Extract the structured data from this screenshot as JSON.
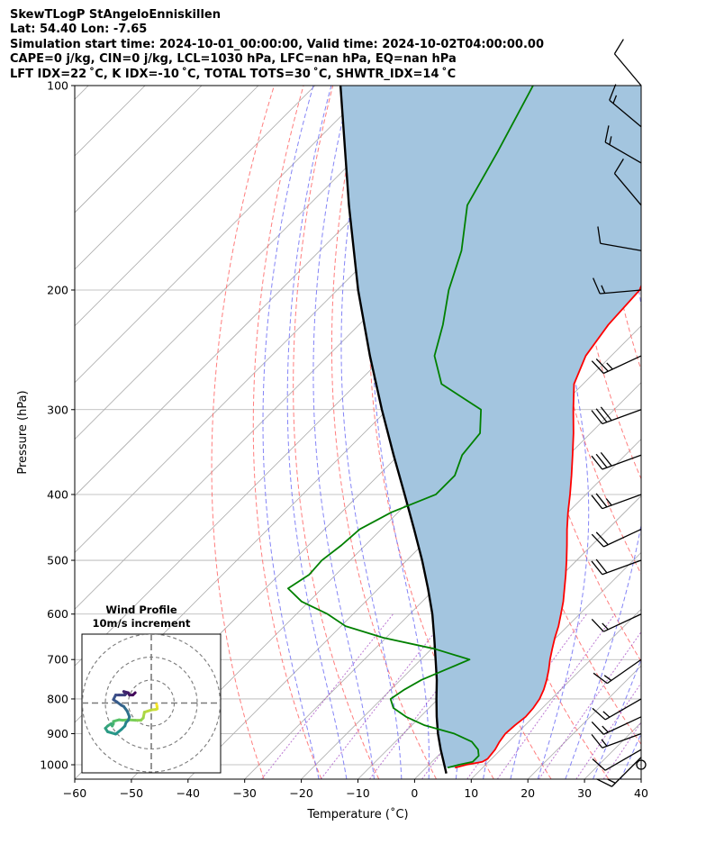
{
  "header": {
    "line1": "SkewTLogP StAngeloEnniskillen",
    "line2": "Lat: 54.40   Lon: -7.65",
    "line3": "Simulation start time: 2024-10-01_00:00:00, Valid time: 2024-10-02T04:00:00.00",
    "line4": "CAPE=0 j/kg, CIN=0 j/kg, LCL=1030 hPa, LFC=nan hPa, EQ=nan hPa",
    "line5": "LFT IDX=22 ˚C, K IDX=-10 ˚C, TOTAL TOTS=30 ˚C, SHWTR_IDX=14 ˚C"
  },
  "chart_data": {
    "type": "line",
    "xlabel": "Temperature (˚C)",
    "ylabel": "Pressure (hPa)",
    "xlim": [
      -60,
      40
    ],
    "ylim": [
      1050,
      100
    ],
    "y_scale": "log",
    "x_ticks": [
      "−60",
      "−50",
      "−40",
      "−30",
      "−20",
      "−10",
      "0",
      "10",
      "20",
      "30",
      "40"
    ],
    "y_ticks": [
      "100",
      "200",
      "300",
      "400",
      "500",
      "600",
      "700",
      "800",
      "900",
      "1000"
    ],
    "skew_degrees": 45,
    "grid": true,
    "colors": {
      "temperature": "#ff0000",
      "dewpoint": "#008000",
      "parcel": "#000000",
      "shading": "#a3c5df",
      "dry_adiabat": "#ff6666",
      "moist_adiabat": "#6f6ff5",
      "mixing_ratio": "#a040c0",
      "isotherm": "#aaaaaa"
    },
    "temperature": {
      "pressure": [
        1010,
        1000,
        990,
        980,
        950,
        925,
        900,
        875,
        850,
        825,
        800,
        775,
        750,
        725,
        700,
        675,
        650,
        625,
        600,
        575,
        550,
        525,
        500,
        475,
        450,
        425,
        400,
        375,
        350,
        325,
        300,
        275,
        250,
        225,
        200,
        175,
        150,
        125,
        100
      ],
      "values": [
        5.1,
        6.6,
        8.9,
        9.3,
        9.0,
        8.4,
        8.0,
        8.2,
        8.6,
        8.4,
        7.9,
        7.0,
        5.8,
        4.4,
        2.8,
        1.3,
        -0.2,
        -1.6,
        -3.3,
        -5.1,
        -7.2,
        -9.4,
        -11.8,
        -14.4,
        -17.2,
        -20.0,
        -22.8,
        -25.9,
        -29.3,
        -33.0,
        -37.2,
        -41.6,
        -44.5,
        -46.0,
        -46.6,
        -50.8,
        -54.6,
        -58.6,
        -61.8
      ]
    },
    "dewpoint": {
      "pressure": [
        1010,
        1000,
        990,
        970,
        950,
        925,
        900,
        875,
        850,
        825,
        800,
        775,
        750,
        725,
        700,
        675,
        650,
        625,
        600,
        575,
        550,
        525,
        500,
        475,
        450,
        425,
        400,
        375,
        350,
        325,
        300,
        275,
        250,
        225,
        200,
        175,
        150,
        125,
        100
      ],
      "values": [
        3.8,
        5.3,
        7.2,
        7.2,
        6.0,
        3.5,
        -1.0,
        -7.7,
        -12.5,
        -16.3,
        -18.4,
        -17.6,
        -16.3,
        -13.9,
        -11.4,
        -19.5,
        -30.5,
        -39.2,
        -44.5,
        -51.3,
        -56.0,
        -54.7,
        -55.0,
        -54.2,
        -53.8,
        -51.2,
        -46.5,
        -46.5,
        -48.8,
        -49.5,
        -53.5,
        -65.0,
        -71.2,
        -75.2,
        -80.3,
        -85.0,
        -92.0,
        -96.1,
        -101.5
      ]
    },
    "parcel": {
      "pressure": [
        1030,
        1000,
        950,
        900,
        850,
        800,
        750,
        700,
        650,
        600,
        550,
        500,
        450,
        400,
        350,
        300,
        250,
        200,
        150,
        100
      ],
      "values": [
        4.6,
        2.7,
        -0.6,
        -3.9,
        -7.1,
        -10.3,
        -13.6,
        -17.4,
        -21.5,
        -26.0,
        -31.3,
        -37.3,
        -44.2,
        -52.0,
        -60.9,
        -71.0,
        -82.6,
        -96.3,
        -112.9,
        -135.5
      ]
    },
    "wind_barbs": [
      {
        "pressure": 1000,
        "calm": true
      },
      {
        "pressure": 975,
        "speed_kt": 15,
        "direction": 225
      },
      {
        "pressure": 950,
        "speed_kt": 10,
        "direction": 240
      },
      {
        "pressure": 900,
        "speed_kt": 15,
        "direction": 250
      },
      {
        "pressure": 850,
        "speed_kt": 15,
        "direction": 245
      },
      {
        "pressure": 800,
        "speed_kt": 15,
        "direction": 240
      },
      {
        "pressure": 700,
        "speed_kt": 15,
        "direction": 235
      },
      {
        "pressure": 600,
        "speed_kt": 15,
        "direction": 245
      },
      {
        "pressure": 500,
        "speed_kt": 20,
        "direction": 250
      },
      {
        "pressure": 450,
        "speed_kt": 20,
        "direction": 245
      },
      {
        "pressure": 400,
        "speed_kt": 25,
        "direction": 250
      },
      {
        "pressure": 350,
        "speed_kt": 30,
        "direction": 250
      },
      {
        "pressure": 300,
        "speed_kt": 30,
        "direction": 250
      },
      {
        "pressure": 250,
        "speed_kt": 25,
        "direction": 245
      },
      {
        "pressure": 200,
        "speed_kt": 15,
        "direction": 265
      },
      {
        "pressure": 175,
        "speed_kt": 10,
        "direction": 280
      },
      {
        "pressure": 150,
        "speed_kt": 10,
        "direction": 320
      },
      {
        "pressure": 130,
        "speed_kt": 15,
        "direction": 300
      },
      {
        "pressure": 115,
        "speed_kt": 15,
        "direction": 310
      },
      {
        "pressure": 100,
        "speed_kt": 10,
        "direction": 320
      }
    ],
    "hodograph": {
      "title": "Wind Profile",
      "subtitle": "10m/s increment",
      "ring_increment_ms": 10,
      "rings": 3,
      "u": [
        2.3,
        2.5,
        2.6,
        2.0,
        0.0,
        -3.0,
        -3.5,
        -4.5,
        -7.0,
        -10.0,
        -12.5,
        -14.0,
        -16.5,
        -16.5,
        -17.0,
        -17.5,
        -19.0,
        -20.0,
        -19.0,
        -15.5,
        -13.0,
        -11.5,
        -11.0,
        -10.0,
        -9.5,
        -10.5,
        -12.0,
        -13.0,
        -15.0,
        -16.5,
        -15.5,
        -14.0,
        -11.5,
        -11.0,
        -11.5,
        -12.0,
        -10.0,
        -9.5,
        -8.0,
        -7.0
      ],
      "v": [
        -0.5,
        -1.5,
        -2.5,
        -2.8,
        -3.0,
        -4.0,
        -6.5,
        -7.5,
        -7.5,
        -7.3,
        -7.5,
        -7.3,
        -8.0,
        -9.0,
        -10.0,
        -9.0,
        -10.0,
        -11.0,
        -12.5,
        -13.5,
        -11.5,
        -10.0,
        -8.5,
        -7.5,
        -6.0,
        -3.5,
        -1.5,
        -1.0,
        0.5,
        1.5,
        3.5,
        3.5,
        3.5,
        4.0,
        4.5,
        5.0,
        4.5,
        3.5,
        3.5,
        4.5
      ]
    }
  }
}
